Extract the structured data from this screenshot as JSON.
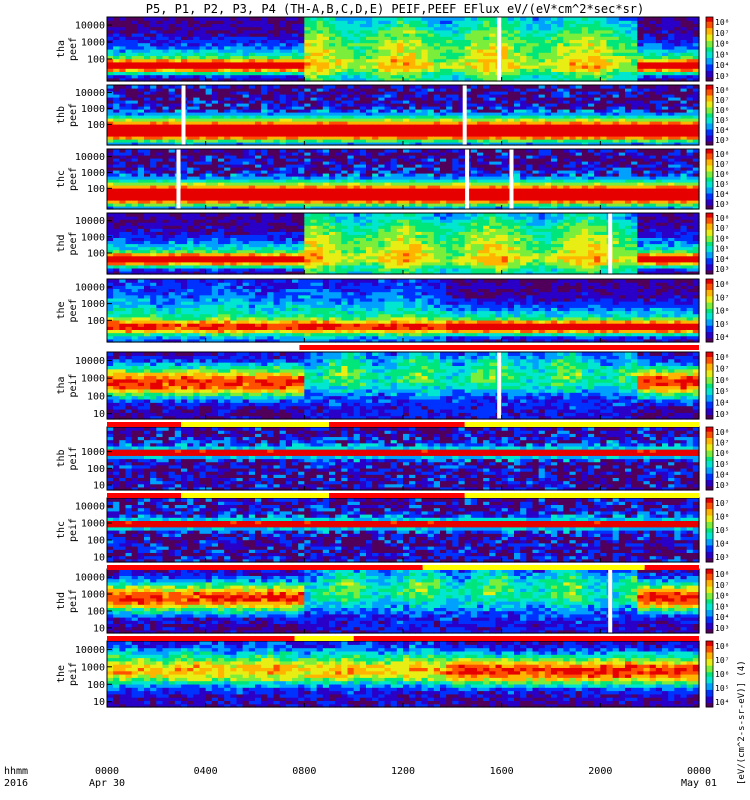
{
  "chart_data": {
    "type": "heatmap",
    "title": "P5, P1, P2, P3, P4 (TH-A,B,C,D,E) PEIF,PEEF EFlux eV/(eV*cm^2*sec*sr)",
    "x_axis": {
      "label_line1": "hhmm",
      "label_line2": "2016",
      "range_hours": [
        0,
        24
      ],
      "ticks": [
        {
          "hour": 0,
          "label": "0000",
          "sub": "Apr 30"
        },
        {
          "hour": 4,
          "label": "0400",
          "sub": ""
        },
        {
          "hour": 8,
          "label": "0800",
          "sub": ""
        },
        {
          "hour": 12,
          "label": "1200",
          "sub": ""
        },
        {
          "hour": 16,
          "label": "1600",
          "sub": ""
        },
        {
          "hour": 20,
          "label": "2000",
          "sub": ""
        },
        {
          "hour": 24,
          "label": "0000",
          "sub": "May 01"
        }
      ]
    },
    "colorbar_label": "[eV/(cm^2-s-sr-eV)] (4)",
    "panels": [
      {
        "id": "tha-peef",
        "line1": "tha",
        "line2": "peef",
        "y_scale": "log",
        "y_ticks": [
          "10000",
          "1000",
          "100"
        ],
        "y_range": [
          5,
          30000
        ],
        "cbar_ticks": [
          "10^8",
          "10^7",
          "10^6",
          "10^5",
          "10^4",
          "10^3"
        ],
        "regime": "electron",
        "dropouts": [
          15.9
        ]
      },
      {
        "id": "thb-peef",
        "line1": "thb",
        "line2": "peef",
        "y_scale": "log",
        "y_ticks": [
          "10000",
          "1000",
          "100"
        ],
        "y_range": [
          5,
          30000
        ],
        "cbar_ticks": [
          "10^8",
          "10^7",
          "10^6",
          "10^5",
          "10^4",
          "10^3"
        ],
        "regime": "solarwind_e",
        "dropouts": [
          3.1,
          14.5
        ]
      },
      {
        "id": "thc-peef",
        "line1": "thc",
        "line2": "peef",
        "y_scale": "log",
        "y_ticks": [
          "10000",
          "1000",
          "100"
        ],
        "y_range": [
          5,
          30000
        ],
        "cbar_ticks": [
          "10^8",
          "10^7",
          "10^6",
          "10^5",
          "10^4",
          "10^3"
        ],
        "regime": "solarwind_e",
        "dropouts": [
          2.9,
          14.6,
          16.4
        ]
      },
      {
        "id": "thd-peef",
        "line1": "thd",
        "line2": "peef",
        "y_scale": "log",
        "y_ticks": [
          "10000",
          "1000",
          "100"
        ],
        "y_range": [
          5,
          30000
        ],
        "cbar_ticks": [
          "10^8",
          "10^7",
          "10^6",
          "10^5",
          "10^4",
          "10^3"
        ],
        "regime": "electron",
        "dropouts": [
          20.4
        ]
      },
      {
        "id": "the-peef",
        "line1": "the",
        "line2": "peef",
        "y_scale": "log",
        "y_ticks": [
          "10000",
          "1000",
          "100"
        ],
        "y_range": [
          5,
          30000
        ],
        "cbar_ticks": [
          "10^8",
          "10^7",
          "10^6",
          "10^5",
          "10^4"
        ],
        "regime": "electron_e",
        "dropouts": []
      },
      {
        "id": "tha-peif",
        "line1": "tha",
        "line2": "peif",
        "y_scale": "log",
        "y_ticks": [
          "10000",
          "1000",
          "100",
          "10"
        ],
        "y_range": [
          5,
          30000
        ],
        "cbar_ticks": [
          "10^8",
          "10^7",
          "10^6",
          "10^5",
          "10^4",
          "10^3"
        ],
        "regime": "ion",
        "dropouts": [
          15.9
        ]
      },
      {
        "id": "thb-peif",
        "line1": "thb",
        "line2": "peif",
        "y_scale": "log",
        "y_ticks": [
          "1000",
          "100",
          "10"
        ],
        "y_range": [
          5,
          30000
        ],
        "cbar_ticks": [
          "10^8",
          "10^7",
          "10^6",
          "10^5",
          "10^4",
          "10^3"
        ],
        "regime": "solarwind_i",
        "dropouts": []
      },
      {
        "id": "thc-peif",
        "line1": "thc",
        "line2": "peif",
        "y_scale": "log",
        "y_ticks": [
          "10000",
          "1000",
          "100",
          "10"
        ],
        "y_range": [
          5,
          30000
        ],
        "cbar_ticks": [
          "10^7",
          "10^6",
          "10^5",
          "10^4",
          "10^3"
        ],
        "regime": "solarwind_i",
        "dropouts": []
      },
      {
        "id": "thd-peif",
        "line1": "thd",
        "line2": "peif",
        "y_scale": "log",
        "y_ticks": [
          "10000",
          "1000",
          "100",
          "10"
        ],
        "y_range": [
          5,
          30000
        ],
        "cbar_ticks": [
          "10^8",
          "10^7",
          "10^6",
          "10^5",
          "10^4",
          "10^3"
        ],
        "regime": "ion",
        "dropouts": [
          20.4
        ]
      },
      {
        "id": "the-peif",
        "line1": "the",
        "line2": "peif",
        "y_scale": "log",
        "y_ticks": [
          "10000",
          "1000",
          "100",
          "10"
        ],
        "y_range": [
          5,
          30000
        ],
        "cbar_ticks": [
          "10^8",
          "10^7",
          "10^6",
          "10^5",
          "10^4"
        ],
        "regime": "ion_e",
        "dropouts": []
      }
    ],
    "mode_bars": [
      {
        "after_panel": 4,
        "segments": [
          {
            "from": 0,
            "to": 7.8,
            "color": "#ffffff"
          },
          {
            "from": 7.8,
            "to": 24,
            "color": "#ff0000"
          }
        ]
      },
      {
        "after_panel": 5,
        "segments": [
          {
            "from": 0,
            "to": 3.0,
            "color": "#ff0000"
          },
          {
            "from": 3.0,
            "to": 9.0,
            "color": "#ffff00"
          },
          {
            "from": 9.0,
            "to": 14.5,
            "color": "#ff0000"
          },
          {
            "from": 14.5,
            "to": 24,
            "color": "#ffff00"
          }
        ]
      },
      {
        "after_panel": 6,
        "segments": [
          {
            "from": 0,
            "to": 3.0,
            "color": "#ff0000"
          },
          {
            "from": 3.0,
            "to": 9.0,
            "color": "#ffff00"
          },
          {
            "from": 9.0,
            "to": 14.5,
            "color": "#ff0000"
          },
          {
            "from": 14.5,
            "to": 24,
            "color": "#ffff00"
          }
        ]
      },
      {
        "after_panel": 7,
        "segments": [
          {
            "from": 0,
            "to": 12.8,
            "color": "#ff0000"
          },
          {
            "from": 12.8,
            "to": 21.8,
            "color": "#ffff00"
          },
          {
            "from": 21.8,
            "to": 24,
            "color": "#ff0000"
          }
        ]
      },
      {
        "after_panel": 8,
        "segments": [
          {
            "from": 0,
            "to": 7.6,
            "color": "#ff0000"
          },
          {
            "from": 7.6,
            "to": 10.0,
            "color": "#ffff00"
          },
          {
            "from": 10.0,
            "to": 24,
            "color": "#ff0000"
          }
        ]
      }
    ],
    "colormap": [
      "#50005a",
      "#2a00c8",
      "#0032ff",
      "#00a0ff",
      "#00e6d0",
      "#00e67a",
      "#7aee3a",
      "#e8ee14",
      "#ffb400",
      "#ff5000",
      "#e60000"
    ]
  }
}
